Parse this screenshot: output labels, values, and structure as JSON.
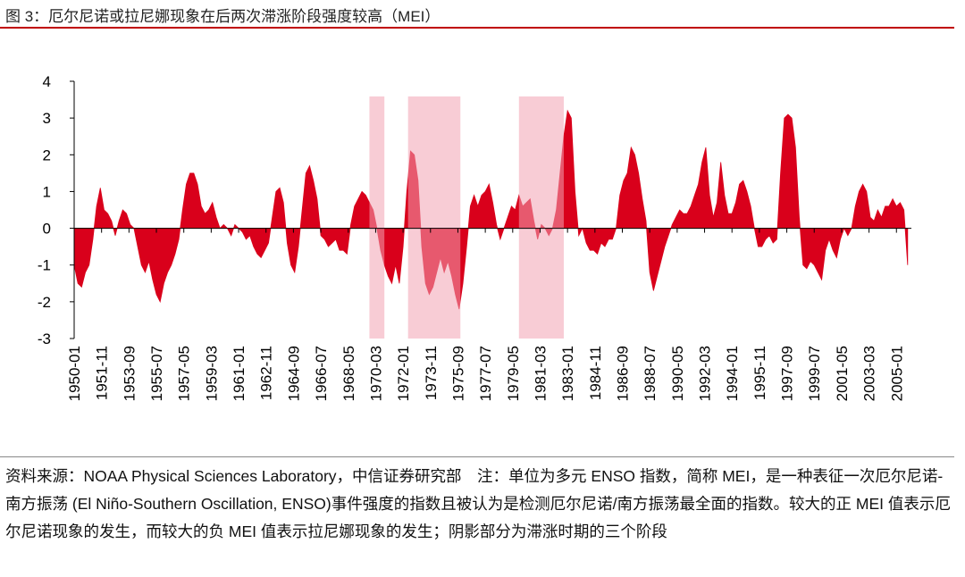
{
  "chart_data": {
    "type": "area",
    "title": "图 3：厄尔尼诺或拉尼娜现象在后两次滞涨阶段强度较高（MEI）",
    "note": "资料来源：NOAA Physical Sciences Laboratory，中信证券研究部　注：单位为多元 ENSO 指数，简称 MEI，是一种表征一次厄尔尼诺-南方振荡 (El Niño-Southern Oscillation, ENSO)事件强度的指数且被认为是检测厄尔尼诺/南方振荡最全面的指数。较大的正 MEI 值表示厄尔尼诺现象的发生，而较大的负 MEI 值表示拉尼娜现象的发生；阴影部分为滞涨时期的三个阶段",
    "color": "#d9001b",
    "shade_color": "#f2a3b3",
    "shaded_periods": [
      [
        "1969-10",
        "1970-10"
      ],
      [
        "1972-05",
        "1975-11"
      ],
      [
        "1979-10",
        "1982-10"
      ]
    ],
    "xlim": [
      "1950-01",
      "2006-01"
    ],
    "xticks": [
      "1950-01",
      "1951-11",
      "1953-09",
      "1955-07",
      "1957-05",
      "1959-03",
      "1961-01",
      "1962-11",
      "1964-09",
      "1966-07",
      "1968-05",
      "1970-03",
      "1972-01",
      "1973-11",
      "1975-09",
      "1977-07",
      "1979-05",
      "1981-03",
      "1983-01",
      "1984-11",
      "1986-09",
      "1988-07",
      "1990-05",
      "1992-03",
      "1994-01",
      "1995-11",
      "1997-09",
      "1999-07",
      "2001-05",
      "2003-03",
      "2005-01"
    ],
    "ylim": [
      -3,
      4
    ],
    "yticks": [
      -3,
      -2,
      -1,
      0,
      1,
      2,
      3,
      4
    ],
    "x": [
      "1950-01",
      "1950-04",
      "1950-07",
      "1950-10",
      "1951-01",
      "1951-04",
      "1951-07",
      "1951-10",
      "1952-01",
      "1952-04",
      "1952-07",
      "1952-10",
      "1953-01",
      "1953-04",
      "1953-07",
      "1953-10",
      "1954-01",
      "1954-04",
      "1954-07",
      "1954-10",
      "1955-01",
      "1955-04",
      "1955-07",
      "1955-10",
      "1956-01",
      "1956-04",
      "1956-07",
      "1956-10",
      "1957-01",
      "1957-04",
      "1957-07",
      "1957-10",
      "1958-01",
      "1958-04",
      "1958-07",
      "1958-10",
      "1959-01",
      "1959-04",
      "1959-07",
      "1959-10",
      "1960-01",
      "1960-04",
      "1960-07",
      "1960-10",
      "1961-01",
      "1961-04",
      "1961-07",
      "1961-10",
      "1962-01",
      "1962-04",
      "1962-07",
      "1962-10",
      "1963-01",
      "1963-04",
      "1963-07",
      "1963-10",
      "1964-01",
      "1964-04",
      "1964-07",
      "1964-10",
      "1965-01",
      "1965-04",
      "1965-07",
      "1965-10",
      "1966-01",
      "1966-04",
      "1966-07",
      "1966-10",
      "1967-01",
      "1967-04",
      "1967-07",
      "1967-10",
      "1968-01",
      "1968-04",
      "1968-07",
      "1968-10",
      "1969-01",
      "1969-04",
      "1969-07",
      "1969-10",
      "1970-01",
      "1970-04",
      "1970-07",
      "1970-10",
      "1971-01",
      "1971-04",
      "1971-07",
      "1971-10",
      "1972-01",
      "1972-04",
      "1972-07",
      "1972-10",
      "1973-01",
      "1973-04",
      "1973-07",
      "1973-10",
      "1974-01",
      "1974-04",
      "1974-07",
      "1974-10",
      "1975-01",
      "1975-04",
      "1975-07",
      "1975-10",
      "1976-01",
      "1976-04",
      "1976-07",
      "1976-10",
      "1977-01",
      "1977-04",
      "1977-07",
      "1977-10",
      "1978-01",
      "1978-04",
      "1978-07",
      "1978-10",
      "1979-01",
      "1979-04",
      "1979-07",
      "1979-10",
      "1980-01",
      "1980-04",
      "1980-07",
      "1980-10",
      "1981-01",
      "1981-04",
      "1981-07",
      "1981-10",
      "1982-01",
      "1982-04",
      "1982-07",
      "1982-10",
      "1983-01",
      "1983-04",
      "1983-07",
      "1983-10",
      "1984-01",
      "1984-04",
      "1984-07",
      "1984-10",
      "1985-01",
      "1985-04",
      "1985-07",
      "1985-10",
      "1986-01",
      "1986-04",
      "1986-07",
      "1986-10",
      "1987-01",
      "1987-04",
      "1987-07",
      "1987-10",
      "1988-01",
      "1988-04",
      "1988-07",
      "1988-10",
      "1989-01",
      "1989-04",
      "1989-07",
      "1989-10",
      "1990-01",
      "1990-04",
      "1990-07",
      "1990-10",
      "1991-01",
      "1991-04",
      "1991-07",
      "1991-10",
      "1992-01",
      "1992-04",
      "1992-07",
      "1992-10",
      "1993-01",
      "1993-04",
      "1993-07",
      "1993-10",
      "1994-01",
      "1994-04",
      "1994-07",
      "1994-10",
      "1995-01",
      "1995-04",
      "1995-07",
      "1995-10",
      "1996-01",
      "1996-04",
      "1996-07",
      "1996-10",
      "1997-01",
      "1997-04",
      "1997-07",
      "1997-10",
      "1998-01",
      "1998-04",
      "1998-07",
      "1998-10",
      "1999-01",
      "1999-04",
      "1999-07",
      "1999-10",
      "2000-01",
      "2000-04",
      "2000-07",
      "2000-10",
      "2001-01",
      "2001-04",
      "2001-07",
      "2001-10",
      "2002-01",
      "2002-04",
      "2002-07",
      "2002-10",
      "2003-01",
      "2003-04",
      "2003-07",
      "2003-10",
      "2004-01",
      "2004-04",
      "2004-07",
      "2004-10",
      "2005-01",
      "2005-04",
      "2005-07",
      "2005-10"
    ],
    "values": [
      -1.0,
      -1.5,
      -1.6,
      -1.2,
      -1.0,
      -0.3,
      0.6,
      1.1,
      0.5,
      0.4,
      0.2,
      -0.2,
      0.2,
      0.5,
      0.4,
      0.1,
      0.0,
      -0.5,
      -1.0,
      -1.2,
      -0.9,
      -1.4,
      -1.8,
      -2.0,
      -1.5,
      -1.2,
      -1.0,
      -0.7,
      -0.3,
      0.5,
      1.2,
      1.5,
      1.5,
      1.2,
      0.6,
      0.4,
      0.5,
      0.7,
      0.3,
      0.0,
      0.1,
      0.0,
      -0.2,
      0.1,
      0.0,
      -0.1,
      -0.3,
      -0.2,
      -0.5,
      -0.7,
      -0.8,
      -0.6,
      -0.4,
      0.3,
      1.0,
      1.1,
      0.7,
      -0.4,
      -1.0,
      -1.2,
      -0.5,
      0.5,
      1.5,
      1.7,
      1.3,
      0.8,
      -0.2,
      -0.3,
      -0.5,
      -0.4,
      -0.3,
      -0.6,
      -0.6,
      -0.7,
      0.1,
      0.6,
      0.8,
      1.0,
      0.9,
      0.7,
      0.5,
      0.0,
      -0.6,
      -1.0,
      -1.3,
      -1.5,
      -1.0,
      -1.5,
      -0.5,
      1.0,
      2.1,
      2.0,
      1.3,
      -0.5,
      -1.5,
      -1.8,
      -1.6,
      -1.2,
      -0.8,
      -1.2,
      -0.9,
      -1.3,
      -1.8,
      -2.2,
      -1.5,
      -0.5,
      0.6,
      0.9,
      0.6,
      0.9,
      1.0,
      1.2,
      0.7,
      0.1,
      -0.3,
      0.0,
      0.3,
      0.6,
      0.5,
      0.9,
      0.6,
      0.7,
      0.8,
      0.2,
      -0.3,
      0.1,
      0.0,
      -0.2,
      0.0,
      0.5,
      1.5,
      2.5,
      3.2,
      3.0,
      1.0,
      -0.2,
      0.0,
      -0.4,
      -0.6,
      -0.6,
      -0.7,
      -0.4,
      -0.5,
      -0.3,
      -0.3,
      0.0,
      0.9,
      1.3,
      1.5,
      2.2,
      2.0,
      1.5,
      0.8,
      0.2,
      -1.2,
      -1.7,
      -1.3,
      -0.9,
      -0.5,
      -0.2,
      0.1,
      0.3,
      0.5,
      0.4,
      0.4,
      0.6,
      0.9,
      1.2,
      1.8,
      2.2,
      0.9,
      0.3,
      0.7,
      1.8,
      0.9,
      0.4,
      0.4,
      0.7,
      1.2,
      1.3,
      1.0,
      0.6,
      0.0,
      -0.5,
      -0.5,
      -0.3,
      -0.2,
      -0.4,
      -0.3,
      1.5,
      3.0,
      3.1,
      3.0,
      2.2,
      0.3,
      -1.0,
      -1.1,
      -0.9,
      -1.0,
      -1.2,
      -1.4,
      -0.6,
      -0.3,
      -0.6,
      -0.8,
      -0.3,
      0.0,
      -0.2,
      0.0,
      0.6,
      1.0,
      1.2,
      1.0,
      0.3,
      0.2,
      0.5,
      0.3,
      0.6,
      0.6,
      0.8,
      0.6,
      0.7,
      0.5,
      -1.0
    ]
  }
}
